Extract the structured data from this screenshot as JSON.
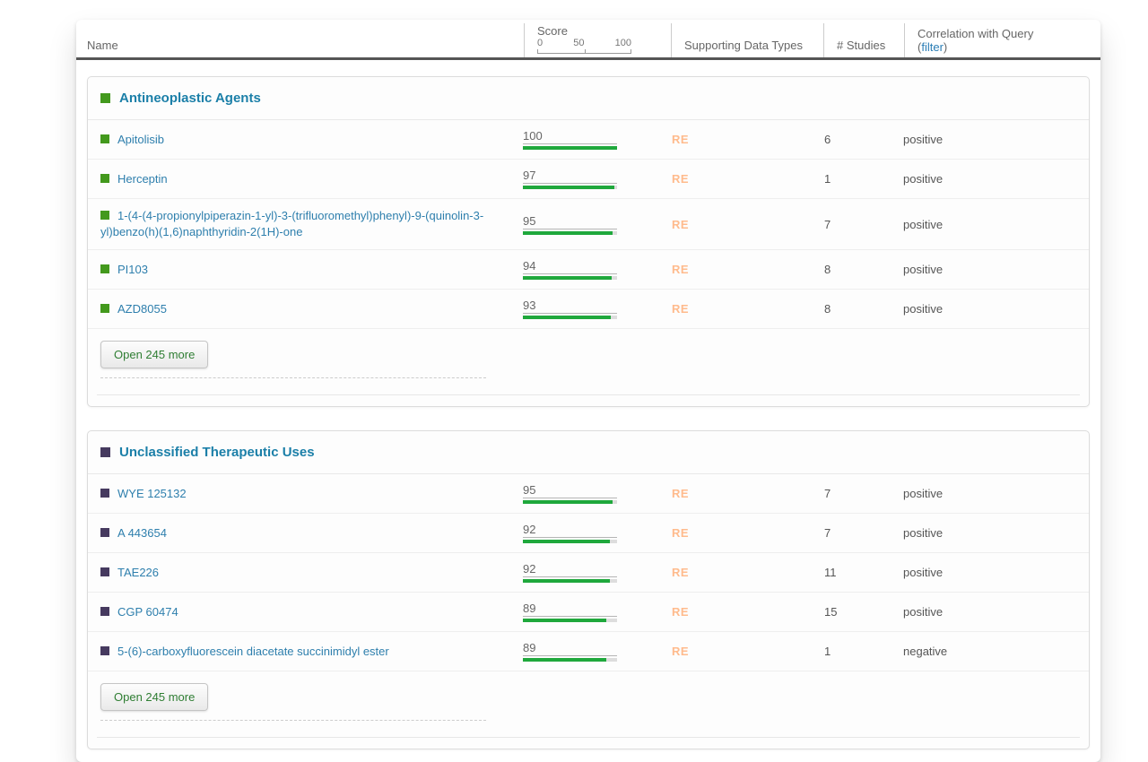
{
  "table_header": {
    "name": "Name",
    "score": "Score",
    "score_ticks": [
      "0",
      "50",
      "100"
    ],
    "supporting_data_types": "Supporting Data Types",
    "studies": "# Studies",
    "correlation_line1": "Correlation with Query",
    "filter_open_paren": "(",
    "filter_link": "filter",
    "filter_close_paren": ")"
  },
  "score_axis": {
    "min": 0,
    "mid": 50,
    "max": 100
  },
  "groups": [
    {
      "title": "Antineoplastic Agents",
      "color": "#43991d",
      "open_more_label": "Open 245 more",
      "rows": [
        {
          "name": "Apitolisib",
          "score": 100,
          "data_type": "RE",
          "studies": "6",
          "correlation": "positive"
        },
        {
          "name": "Herceptin",
          "score": 97,
          "data_type": "RE",
          "studies": "1",
          "correlation": "positive"
        },
        {
          "name": "1-(4-(4-propionylpiperazin-1-yl)-3-(trifluoromethyl)phenyl)-9-(quinolin-3-yl)benzo(h)(1,6)naphthyridin-2(1H)-one",
          "score": 95,
          "data_type": "RE",
          "studies": "7",
          "correlation": "positive"
        },
        {
          "name": "PI103",
          "score": 94,
          "data_type": "RE",
          "studies": "8",
          "correlation": "positive"
        },
        {
          "name": "AZD8055",
          "score": 93,
          "data_type": "RE",
          "studies": "8",
          "correlation": "positive"
        }
      ]
    },
    {
      "title": "Unclassified Therapeutic Uses",
      "color": "#463a5f",
      "open_more_label": "Open 245 more",
      "rows": [
        {
          "name": "WYE 125132",
          "score": 95,
          "data_type": "RE",
          "studies": "7",
          "correlation": "positive"
        },
        {
          "name": "A 443654",
          "score": 92,
          "data_type": "RE",
          "studies": "7",
          "correlation": "positive"
        },
        {
          "name": "TAE226",
          "score": 92,
          "data_type": "RE",
          "studies": "11",
          "correlation": "positive"
        },
        {
          "name": "CGP 60474",
          "score": 89,
          "data_type": "RE",
          "studies": "15",
          "correlation": "positive"
        },
        {
          "name": "5-(6)-carboxyfluorescein diacetate succinimidyl ester",
          "score": 89,
          "data_type": "RE",
          "studies": "1",
          "correlation": "negative"
        }
      ]
    }
  ],
  "colors": {
    "group_title": "#1b7fa8",
    "link": "#2e7fad",
    "bar_fill": "#1fa83c",
    "bar_track": "#dddddd",
    "data_type_badge": "#ffbb8d",
    "button_text": "#2f7e33",
    "header_rule": "#555555"
  }
}
